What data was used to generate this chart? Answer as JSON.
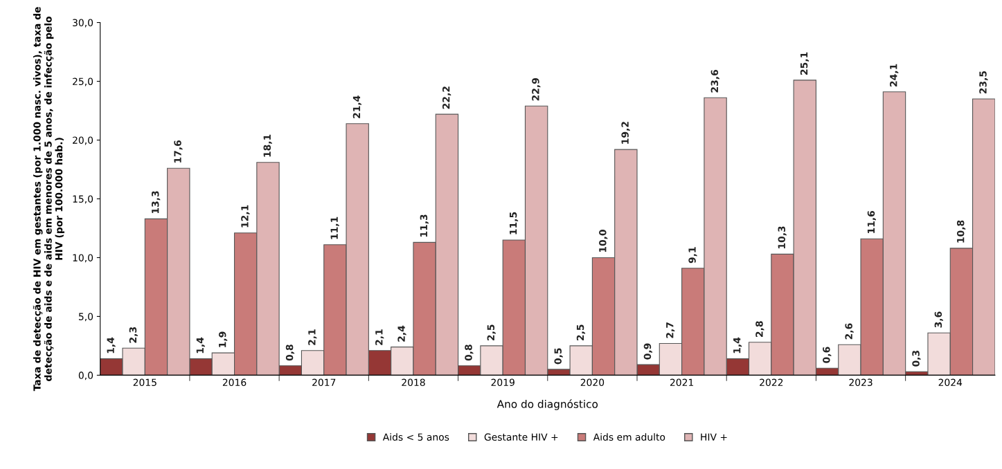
{
  "chart_data": {
    "type": "bar",
    "categories": [
      "2015",
      "2016",
      "2017",
      "2018",
      "2019",
      "2020",
      "2021",
      "2022",
      "2023",
      "2024"
    ],
    "series": [
      {
        "name": "Aids < 5 anos",
        "color": "#953735",
        "values": [
          1.4,
          1.4,
          0.8,
          2.1,
          0.8,
          0.5,
          0.9,
          1.4,
          0.6,
          0.3
        ],
        "value_labels": [
          "1,4",
          "1,4",
          "0,8",
          "2,1",
          "0,8",
          "0,5",
          "0,9",
          "1,4",
          "0,6",
          "0,3"
        ]
      },
      {
        "name": "Gestante HIV +",
        "color": "#f2dcdb",
        "values": [
          2.3,
          1.9,
          2.1,
          2.4,
          2.5,
          2.5,
          2.7,
          2.8,
          2.6,
          3.6
        ],
        "value_labels": [
          "2,3",
          "1,9",
          "2,1",
          "2,4",
          "2,5",
          "2,5",
          "2,7",
          "2,8",
          "2,6",
          "3,6"
        ]
      },
      {
        "name": "Aids em adulto",
        "color": "#c97b79",
        "values": [
          13.3,
          12.1,
          11.1,
          11.3,
          11.5,
          10.0,
          9.1,
          10.3,
          11.6,
          10.8
        ],
        "value_labels": [
          "13,3",
          "12,1",
          "11,1",
          "11,3",
          "11,5",
          "10,0",
          "9,1",
          "10,3",
          "11,6",
          "10,8"
        ]
      },
      {
        "name": "HIV +",
        "color": "#dfb4b4",
        "values": [
          17.6,
          18.1,
          21.4,
          22.2,
          22.9,
          19.2,
          23.6,
          25.1,
          24.1,
          23.5
        ],
        "value_labels": [
          "17,6",
          "18,1",
          "21,4",
          "22,2",
          "22,9",
          "19,2",
          "23,6",
          "25,1",
          "24,1",
          "23,5"
        ]
      }
    ],
    "xlabel": "Ano do diagnóstico",
    "ylabel": "Taxa de detecção de HIV em gestantes (por 1.000 nasc. vivos), taxa de\ndetecção de aids e de aids em menores de 5 anos, de infecção pelo\nHIV (por 100.000 hab.)",
    "ylim": [
      0,
      30
    ],
    "yticks": [
      {
        "value": 0,
        "label": "0,0"
      },
      {
        "value": 5,
        "label": "5,0"
      },
      {
        "value": 10,
        "label": "10,0"
      },
      {
        "value": 15,
        "label": "15,0"
      },
      {
        "value": 20,
        "label": "20,0"
      },
      {
        "value": 25,
        "label": "25,0"
      },
      {
        "value": 30,
        "label": "30,0"
      }
    ],
    "grid": false,
    "legend": "bottom"
  }
}
